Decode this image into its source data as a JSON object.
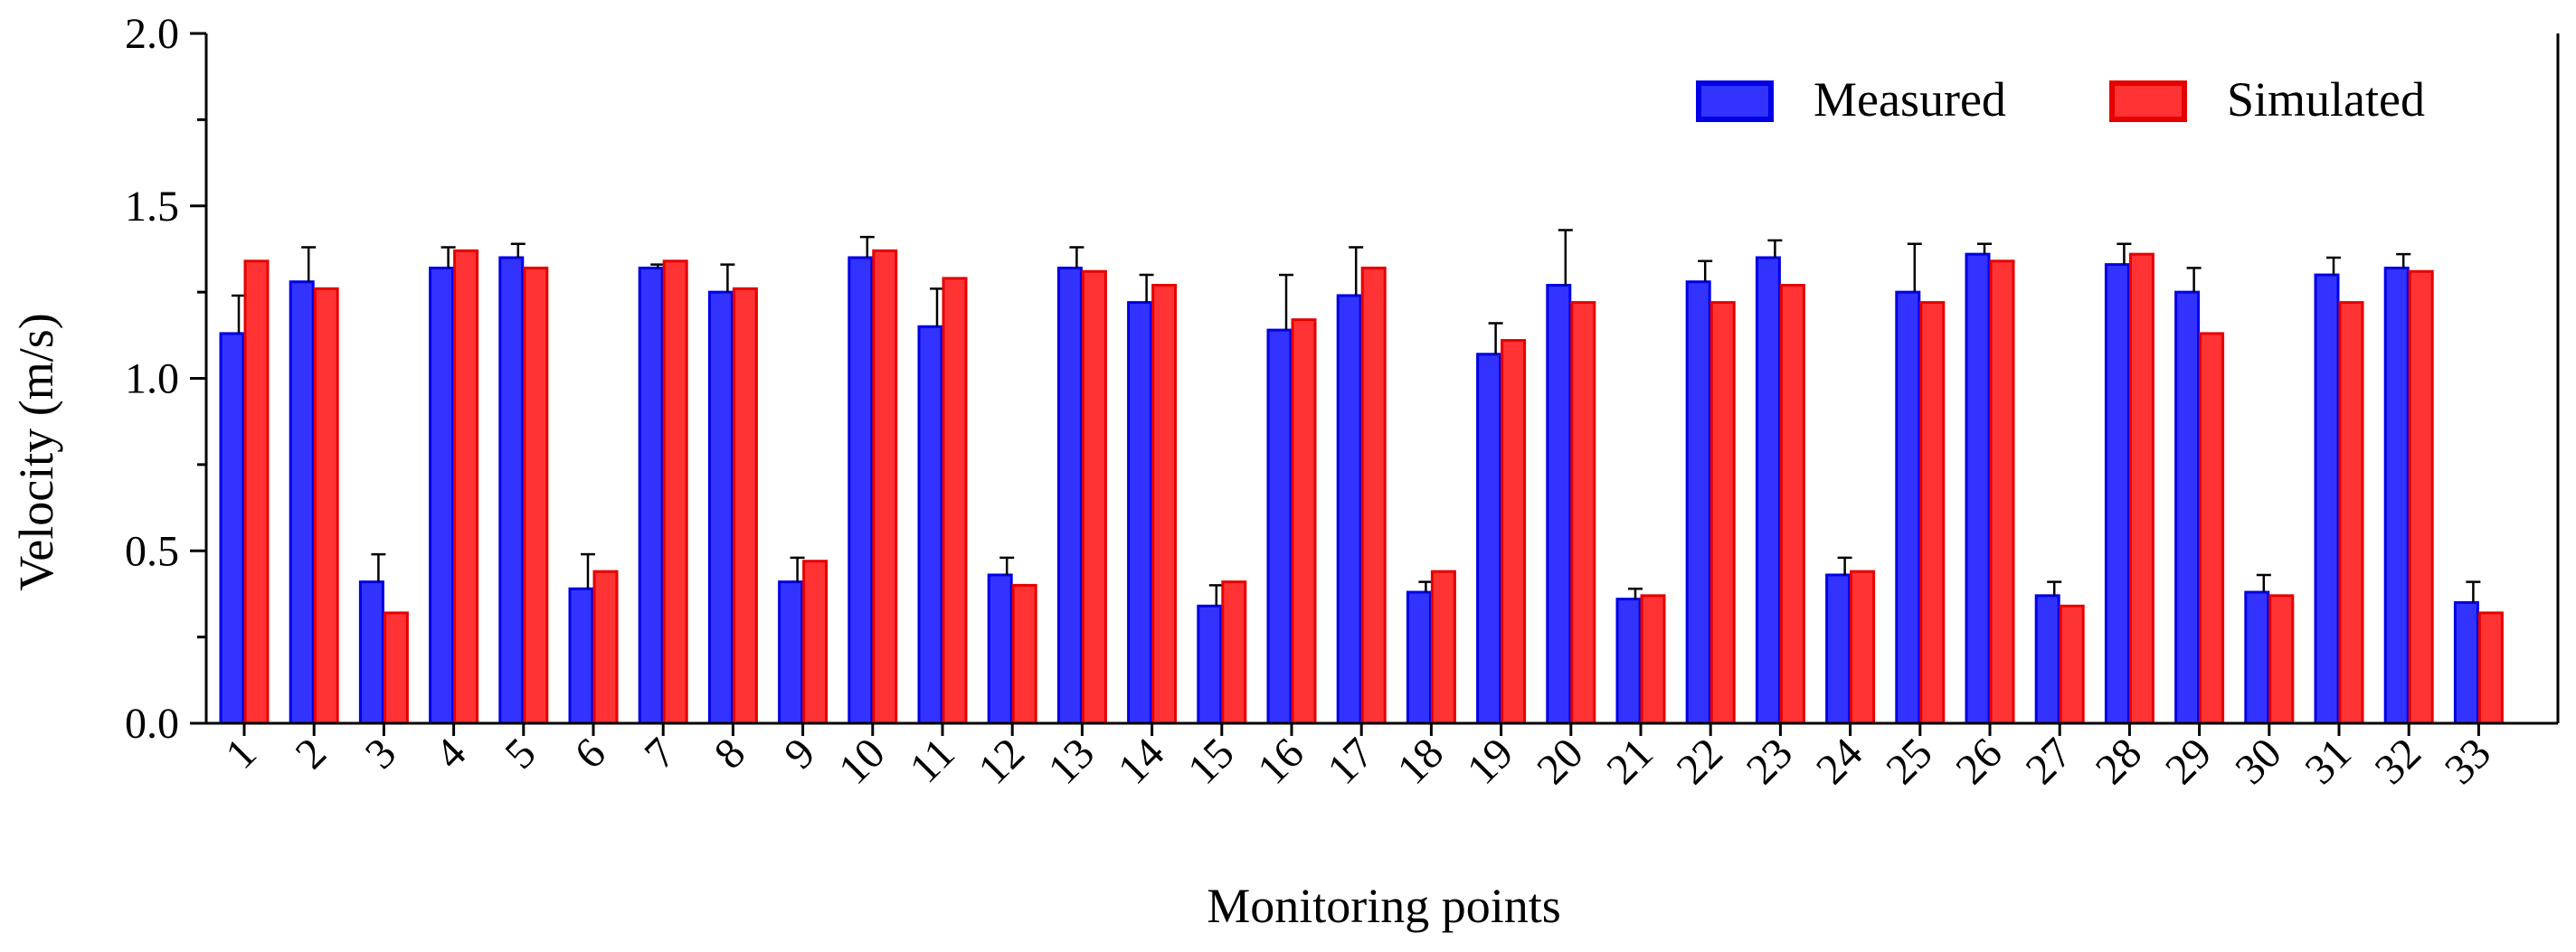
{
  "chart_data": {
    "type": "bar",
    "title": "",
    "xlabel": "Monitoring points",
    "ylabel": "Velocity (m/s)",
    "ylim": [
      0,
      2.0
    ],
    "yticks": [
      "0.0",
      "0.5",
      "1.0",
      "1.5",
      "2.0"
    ],
    "grid": false,
    "legend_position": "top-right",
    "categories": [
      "1",
      "2",
      "3",
      "4",
      "5",
      "6",
      "7",
      "8",
      "9",
      "10",
      "11",
      "12",
      "13",
      "14",
      "15",
      "16",
      "17",
      "18",
      "19",
      "20",
      "21",
      "22",
      "23",
      "24",
      "25",
      "26",
      "27",
      "28",
      "29",
      "30",
      "31",
      "32",
      "33"
    ],
    "series": [
      {
        "name": "Measured",
        "color": "#3333ff",
        "edge_color": "#0000e6",
        "values": [
          1.13,
          1.28,
          0.41,
          1.32,
          1.35,
          0.39,
          1.32,
          1.25,
          0.41,
          1.35,
          1.15,
          0.43,
          1.32,
          1.22,
          0.34,
          1.14,
          1.24,
          0.38,
          1.07,
          1.27,
          0.36,
          1.28,
          1.35,
          0.43,
          1.25,
          1.36,
          0.37,
          1.33,
          1.25,
          0.38,
          1.3,
          1.32,
          0.35
        ],
        "error": [
          0.11,
          0.1,
          0.08,
          0.06,
          0.04,
          0.1,
          0.01,
          0.08,
          0.07,
          0.06,
          0.11,
          0.05,
          0.06,
          0.08,
          0.06,
          0.16,
          0.14,
          0.03,
          0.09,
          0.16,
          0.03,
          0.06,
          0.05,
          0.05,
          0.14,
          0.03,
          0.04,
          0.06,
          0.07,
          0.05,
          0.05,
          0.04,
          0.06
        ]
      },
      {
        "name": "Simulated",
        "color": "#ff3333",
        "edge_color": "#e60000",
        "values": [
          1.34,
          1.26,
          0.32,
          1.37,
          1.32,
          0.44,
          1.34,
          1.26,
          0.47,
          1.37,
          1.29,
          0.4,
          1.31,
          1.27,
          0.41,
          1.17,
          1.32,
          0.44,
          1.11,
          1.22,
          0.37,
          1.22,
          1.27,
          0.44,
          1.22,
          1.34,
          0.34,
          1.36,
          1.13,
          0.37,
          1.22,
          1.31,
          0.32
        ]
      }
    ]
  }
}
